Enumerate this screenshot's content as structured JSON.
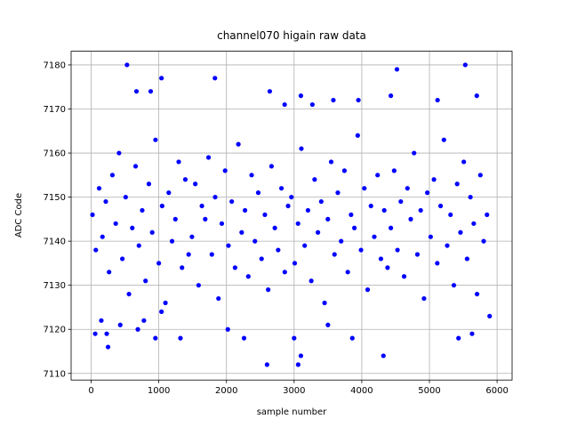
{
  "chart_data": {
    "type": "scatter",
    "title": "channel070 higain raw data",
    "xlabel": "sample number",
    "ylabel": "ADC Code",
    "color": "#0000ff",
    "grid": true,
    "xlim": [
      -296,
      6222
    ],
    "ylim": [
      7108.5,
      7183.1
    ],
    "xticks": [
      0,
      1000,
      2000,
      3000,
      4000,
      5000,
      6000
    ],
    "yticks": [
      7110,
      7120,
      7130,
      7140,
      7150,
      7160,
      7170,
      7180
    ],
    "x": [
      20,
      69,
      118,
      167,
      216,
      265,
      314,
      363,
      412,
      461,
      510,
      559,
      608,
      657,
      706,
      755,
      804,
      853,
      902,
      951,
      1000,
      1049,
      1098,
      1147,
      1196,
      1245,
      1294,
      1343,
      1392,
      1441,
      1490,
      1539,
      1588,
      1637,
      1686,
      1735,
      1784,
      1833,
      1882,
      1931,
      1980,
      2029,
      2078,
      2127,
      2176,
      2225,
      2274,
      2323,
      2372,
      2421,
      2470,
      2519,
      2568,
      2617,
      2666,
      2715,
      2764,
      2813,
      2862,
      2911,
      2960,
      3009,
      3058,
      3107,
      3156,
      3205,
      3254,
      3303,
      3352,
      3401,
      3450,
      3499,
      3548,
      3597,
      3646,
      3695,
      3744,
      3793,
      3842,
      3891,
      3940,
      3989,
      4038,
      4087,
      4136,
      4185,
      4234,
      4283,
      4332,
      4381,
      4430,
      4479,
      4528,
      4577,
      4626,
      4675,
      4724,
      4773,
      4822,
      4871,
      4920,
      4969,
      5018,
      5067,
      5116,
      5165,
      5214,
      5263,
      5312,
      5361,
      5410,
      5459,
      5508,
      5557,
      5606,
      5655,
      5704,
      5753,
      5802,
      5851,
      530,
      5530,
      4520,
      1040,
      1830,
      670,
      880,
      2640,
      5700,
      3100,
      4430,
      2860,
      3270,
      3580,
      3950,
      5120,
      2600,
      3060,
      3100,
      4320,
      250,
      60,
      230,
      950,
      1320,
      2020,
      2260,
      3000,
      3500,
      3860,
      5430,
      5630,
      5890,
      690,
      430,
      150,
      780,
      1040
    ],
    "values": [
      7146,
      7138,
      7152,
      7141,
      7149,
      7133,
      7155,
      7144,
      7160,
      7136,
      7150,
      7128,
      7143,
      7157,
      7139,
      7147,
      7131,
      7153,
      7142,
      7163,
      7135,
      7148,
      7126,
      7151,
      7140,
      7145,
      7158,
      7134,
      7154,
      7137,
      7141,
      7153,
      7130,
      7148,
      7145,
      7159,
      7137,
      7150,
      7127,
      7144,
      7156,
      7139,
      7149,
      7134,
      7162,
      7142,
      7147,
      7132,
      7155,
      7140,
      7151,
      7136,
      7146,
      7129,
      7157,
      7143,
      7138,
      7152,
      7133,
      7148,
      7150,
      7135,
      7144,
      7161,
      7139,
      7147,
      7131,
      7154,
      7142,
      7149,
      7126,
      7145,
      7158,
      7137,
      7151,
      7140,
      7156,
      7133,
      7146,
      7143,
      7164,
      7138,
      7152,
      7129,
      7148,
      7141,
      7155,
      7136,
      7147,
      7134,
      7143,
      7156,
      7138,
      7149,
      7132,
      7152,
      7145,
      7160,
      7137,
      7147,
      7127,
      7151,
      7141,
      7154,
      7135,
      7148,
      7163,
      7139,
      7146,
      7130,
      7153,
      7142,
      7158,
      7136,
      7150,
      7144,
      7128,
      7155,
      7140,
      7146,
      7180,
      7180,
      7179,
      7177,
      7177,
      7174,
      7174,
      7174,
      7173,
      7173,
      7173,
      7171,
      7171,
      7172,
      7172,
      7172,
      7112,
      7112,
      7114,
      7114,
      7116,
      7119,
      7119,
      7118,
      7118,
      7120,
      7118,
      7118,
      7121,
      7118,
      7118,
      7119,
      7123,
      7120,
      7121,
      7122,
      7122,
      7124
    ]
  }
}
